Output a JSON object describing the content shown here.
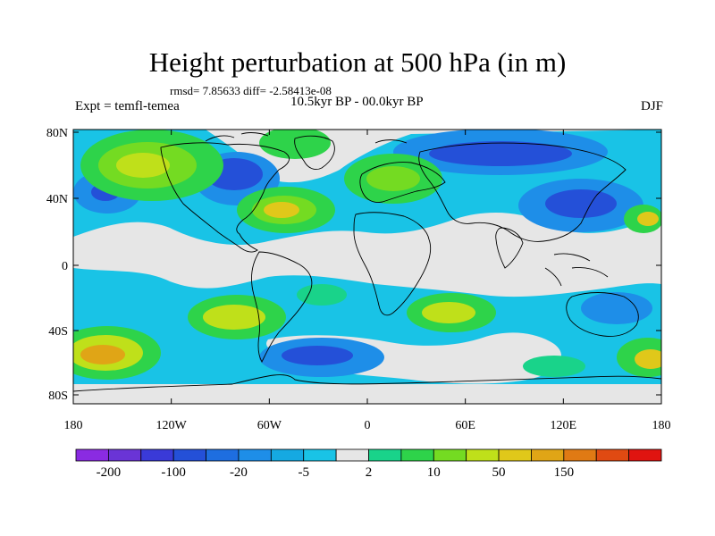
{
  "header": {
    "title": "Height perturbation at 500 hPa (in m)",
    "stats": "rmsd= 7.85633 diff= -2.58413e-08",
    "expt_label": "Expt = temfl-temea",
    "period": "10.5kyr BP - 00.0kyr BP",
    "season": "DJF"
  },
  "map": {
    "lat_ticks": [
      "80N",
      "40N",
      "0",
      "40S",
      "80S"
    ],
    "lon_ticks": [
      "180",
      "120W",
      "60W",
      "0",
      "60E",
      "120E",
      "180"
    ]
  },
  "colorbar": {
    "labels": [
      "-200",
      "-100",
      "-20",
      "-5",
      "2",
      "10",
      "50",
      "150"
    ],
    "colors": [
      "#8a2be2",
      "#6a34d6",
      "#3a3ad8",
      "#2450d8",
      "#1e6ee0",
      "#1e8ee8",
      "#15a9e2",
      "#19c3e6",
      "#e6e6e6",
      "#19d38a",
      "#2ed34a",
      "#74db22",
      "#bfe01a",
      "#e0c81a",
      "#e0a516",
      "#e07a14",
      "#e04a12",
      "#e01410"
    ]
  },
  "anomaly_colors": {
    "neutral": "#e6e6e6",
    "lightblue": "#19c3e6",
    "blue": "#1e8ee8",
    "darkblue": "#2450d8",
    "teal": "#19d38a",
    "green": "#2ed34a",
    "lightgreen": "#74db22",
    "yellowgreen": "#bfe01a",
    "gold": "#e0c81a",
    "orange": "#e0a516"
  }
}
